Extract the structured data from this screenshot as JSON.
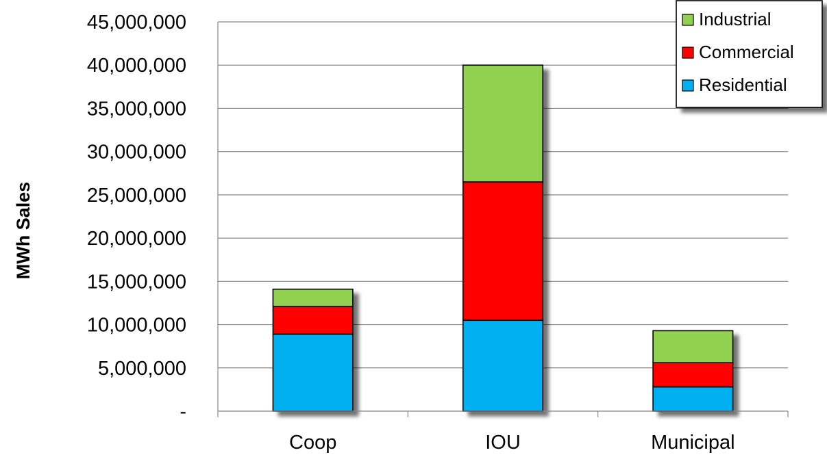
{
  "chart_data": {
    "type": "bar",
    "stacked": true,
    "categories": [
      "Coop",
      "IOU",
      "Municipal"
    ],
    "series": [
      {
        "name": "Residential",
        "values": [
          8900000,
          10500000,
          2800000
        ]
      },
      {
        "name": "Commercial",
        "values": [
          3200000,
          16000000,
          2800000
        ]
      },
      {
        "name": "Industrial",
        "values": [
          2000000,
          13500000,
          3700000
        ]
      }
    ],
    "legend_order": [
      "Industrial",
      "Commercial",
      "Residential"
    ],
    "colors": {
      "Residential": "#00B0F0",
      "Commercial": "#FF0000",
      "Industrial": "#92D050"
    },
    "title": "",
    "xlabel": "",
    "ylabel": "MWh Sales",
    "ylim": [
      0,
      45000000
    ],
    "yticks": [
      0,
      5000000,
      10000000,
      15000000,
      20000000,
      25000000,
      30000000,
      35000000,
      40000000,
      45000000
    ],
    "ytick_labels": [
      "-",
      "5,000,000",
      "10,000,000",
      "15,000,000",
      "20,000,000",
      "25,000,000",
      "30,000,000",
      "35,000,000",
      "40,000,000",
      "45,000,000"
    ],
    "grid": true,
    "legend_position": "top-right"
  }
}
